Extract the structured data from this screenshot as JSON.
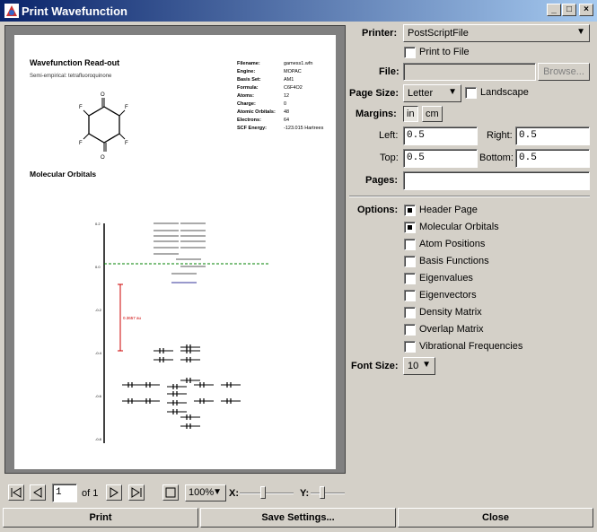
{
  "window": {
    "title": "Print Wavefunction"
  },
  "preview": {
    "title": "Wavefunction Read-out",
    "subtitle": "Semi-empirical: tetrafluoroquinone",
    "section": "Molecular Orbitals",
    "props": [
      {
        "k": "Filename:",
        "v": "gamess1.wfn"
      },
      {
        "k": "Engine:",
        "v": "MOPAC"
      },
      {
        "k": "Basis Set:",
        "v": "AM1"
      },
      {
        "k": "Formula:",
        "v": "C6F4O2"
      },
      {
        "k": "Atoms:",
        "v": "12"
      },
      {
        "k": "Charge:",
        "v": "0"
      },
      {
        "k": "Atomic Orbitals:",
        "v": "48"
      },
      {
        "k": "Electrons:",
        "v": "64"
      },
      {
        "k": "SCF Energy:",
        "v": "-123.015 Hartrees"
      }
    ],
    "gap_label": "0.3657 au",
    "axis_ticks": [
      "0.2",
      "0.0",
      "-0.2",
      "-0.4",
      "-0.6",
      "-0.8"
    ],
    "atom_labels": {
      "O": "O",
      "F": "F"
    }
  },
  "printer": {
    "label": "Printer:",
    "value": "PostScriptFile",
    "print_to_file": "Print to File"
  },
  "file": {
    "label": "File:",
    "value": "",
    "browse": "Browse..."
  },
  "page_size": {
    "label": "Page Size:",
    "value": "Letter",
    "landscape": "Landscape"
  },
  "margins": {
    "label": "Margins:",
    "unit_in": "in",
    "unit_cm": "cm",
    "left_label": "Left:",
    "left": "0.5",
    "right_label": "Right:",
    "right": "0.5",
    "top_label": "Top:",
    "top": "0.5",
    "bottom_label": "Bottom:",
    "bottom": "0.5"
  },
  "pages": {
    "label": "Pages:",
    "value": ""
  },
  "options": {
    "label": "Options:",
    "items": [
      {
        "label": "Header Page",
        "checked": true
      },
      {
        "label": "Molecular Orbitals",
        "checked": true
      },
      {
        "label": "Atom Positions",
        "checked": false
      },
      {
        "label": "Basis Functions",
        "checked": false
      },
      {
        "label": "Eigenvalues",
        "checked": false
      },
      {
        "label": "Eigenvectors",
        "checked": false
      },
      {
        "label": "Density Matrix",
        "checked": false
      },
      {
        "label": "Overlap Matrix",
        "checked": false
      },
      {
        "label": "Vibrational Frequencies",
        "checked": false
      }
    ]
  },
  "font_size": {
    "label": "Font Size:",
    "value": "10"
  },
  "nav": {
    "page": "1",
    "of": "of 1",
    "zoom": "100%",
    "x_label": "X:",
    "y_label": "Y:"
  },
  "buttons": {
    "print": "Print",
    "save": "Save Settings...",
    "close": "Close"
  },
  "colors": {
    "title_start": "#0a246a",
    "title_end": "#a6caf0",
    "homo_line": "#008000",
    "gap": "#cc0000"
  }
}
